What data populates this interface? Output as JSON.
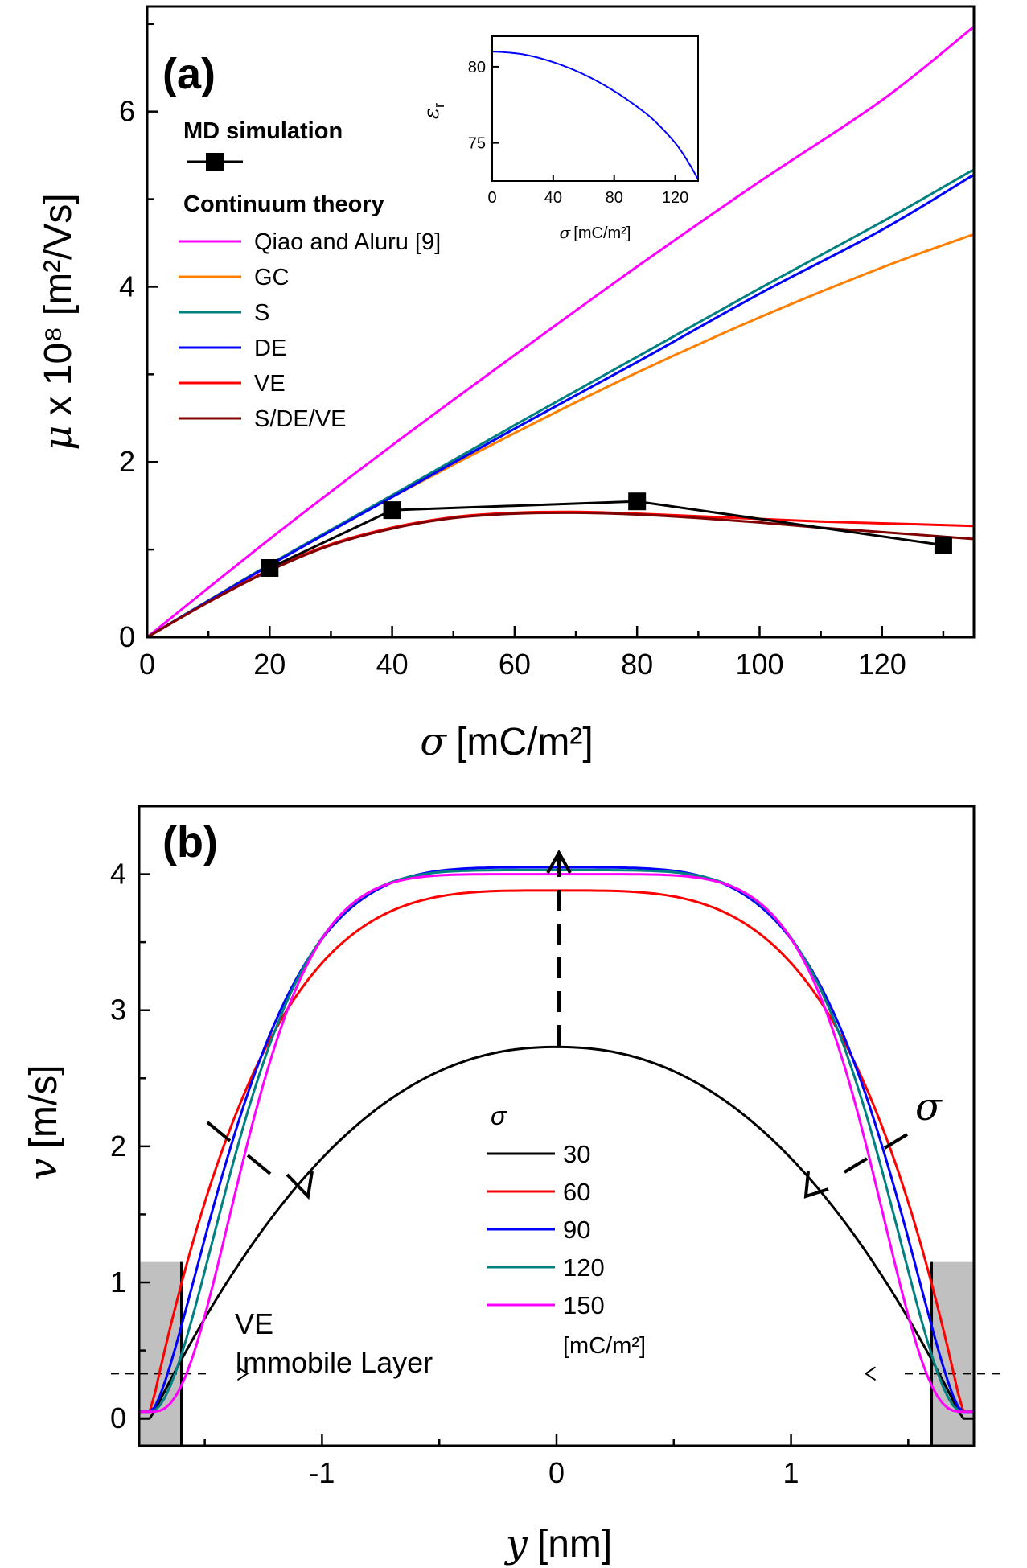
{
  "chart_data": [
    {
      "type": "line",
      "panel": "(a)",
      "xlabel_symbol": "σ",
      "xlabel_unit": "[mC/m²]",
      "ylabel_symbol": "μ",
      "ylabel_unit": "x 10⁸ [m²/Vs]",
      "xlim": [
        0,
        135
      ],
      "ylim": [
        0,
        7.2
      ],
      "xticks": [
        0,
        20,
        40,
        60,
        80,
        100,
        120
      ],
      "yticks": [
        0,
        2,
        4,
        6
      ],
      "legend": {
        "md_header": "MD simulation",
        "theory_header": "Continuum theory"
      },
      "md_simulation": {
        "name": "MD simulation",
        "color": "#000000",
        "x": [
          20,
          40,
          80,
          130
        ],
        "y": [
          0.79,
          1.45,
          1.55,
          1.05
        ]
      },
      "series": [
        {
          "name": "Qiao and Aluru [9]",
          "color": "#ff00ff",
          "x": [
            0,
            20,
            40,
            60,
            80,
            100,
            120,
            135
          ],
          "y": [
            0,
            1.12,
            2.19,
            3.22,
            4.23,
            5.2,
            6.13,
            6.97
          ]
        },
        {
          "name": "GC",
          "color": "#ff8000",
          "x": [
            0,
            20,
            40,
            60,
            80,
            100,
            120,
            135
          ],
          "y": [
            0,
            0.83,
            1.6,
            2.33,
            3.02,
            3.65,
            4.22,
            4.6
          ]
        },
        {
          "name": "S",
          "color": "#008080",
          "x": [
            0,
            20,
            40,
            60,
            80,
            100,
            120,
            135
          ],
          "y": [
            0,
            0.83,
            1.62,
            2.42,
            3.2,
            3.98,
            4.74,
            5.34
          ]
        },
        {
          "name": "DE",
          "color": "#0000ff",
          "x": [
            0,
            20,
            40,
            60,
            80,
            100,
            120,
            135
          ],
          "y": [
            0,
            0.82,
            1.6,
            2.38,
            3.14,
            3.92,
            4.65,
            5.28
          ]
        },
        {
          "name": "VE",
          "color": "#ff0000",
          "x": [
            0,
            10,
            20,
            30,
            40,
            50,
            60,
            70,
            80,
            90,
            100,
            110,
            120,
            135
          ],
          "y": [
            0,
            0.4,
            0.77,
            1.06,
            1.25,
            1.37,
            1.42,
            1.43,
            1.41,
            1.38,
            1.35,
            1.32,
            1.3,
            1.27
          ]
        },
        {
          "name": "S/DE/VE",
          "color": "#800000",
          "x": [
            0,
            10,
            20,
            30,
            40,
            50,
            60,
            70,
            80,
            90,
            100,
            110,
            120,
            135
          ],
          "y": [
            0,
            0.4,
            0.76,
            1.05,
            1.24,
            1.36,
            1.41,
            1.42,
            1.4,
            1.36,
            1.31,
            1.25,
            1.2,
            1.12
          ]
        }
      ]
    },
    {
      "type": "line",
      "panel": "inset",
      "xlabel_symbol": "σ",
      "xlabel_unit": "[mC/m²]",
      "ylabel_symbol": "ε",
      "ylabel_sub": "r",
      "xlim": [
        0,
        135
      ],
      "ylim": [
        72.5,
        82
      ],
      "xticks": [
        0,
        40,
        80,
        120
      ],
      "yticks": [
        75,
        80
      ],
      "series": [
        {
          "name": "εr",
          "color": "#0000ff",
          "x": [
            0,
            20,
            40,
            60,
            80,
            100,
            110,
            120,
            125,
            130,
            135
          ],
          "y": [
            81,
            80.82,
            80.3,
            79.5,
            78.4,
            77,
            76.1,
            75.0,
            74.3,
            73.5,
            72.6
          ]
        }
      ]
    },
    {
      "type": "line",
      "panel": "(b)",
      "xlabel_symbol": "y",
      "xlabel_unit": "[nm]",
      "ylabel_symbol": "v",
      "ylabel_unit": "[m/s]",
      "xlim": [
        -1.78,
        1.78
      ],
      "ylim": [
        -0.2,
        4.5
      ],
      "xticks": [
        -1,
        0,
        1
      ],
      "yticks": [
        0,
        1,
        2,
        3,
        4
      ],
      "legend_title": "σ",
      "legend_unit": "[mC/m²]",
      "annotation_sigma": "σ",
      "immobile_label": "VE",
      "immobile_label2": "Immobile Layer",
      "immobile_edge": 1.6,
      "immobile_height": 1.15,
      "dashed_level": 0.33,
      "series": [
        {
          "name": "30",
          "color": "#000000",
          "vmax": 2.73,
          "y0": 0.0,
          "n": 2.2,
          "b": 1
        },
        {
          "name": "60",
          "color": "#ff0000",
          "vmax": 3.88,
          "y0": 0.05,
          "n": 3.6,
          "b": 1
        },
        {
          "name": "90",
          "color": "#0000ff",
          "vmax": 4.05,
          "y0": 0.05,
          "n": 4.4,
          "b": 1.5
        },
        {
          "name": "120",
          "color": "#008080",
          "vmax": 4.03,
          "y0": 0.05,
          "n": 5.0,
          "b": 2
        },
        {
          "name": "150",
          "color": "#ff00ff",
          "vmax": 4.0,
          "y0": 0.05,
          "n": 5.8,
          "b": 3
        }
      ]
    }
  ]
}
